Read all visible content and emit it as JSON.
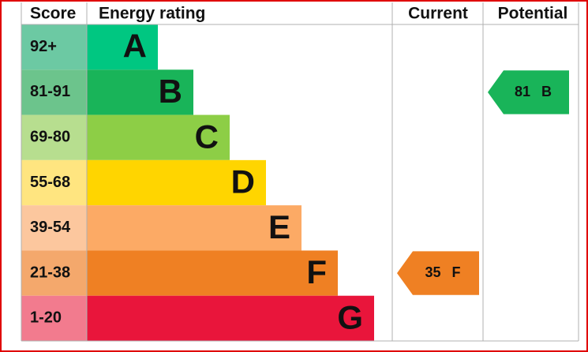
{
  "header": {
    "score": "Score",
    "rating": "Energy rating",
    "current": "Current",
    "potential": "Potential"
  },
  "bands": [
    {
      "score": "92+",
      "letter": "A"
    },
    {
      "score": "81-91",
      "letter": "B"
    },
    {
      "score": "69-80",
      "letter": "C"
    },
    {
      "score": "55-68",
      "letter": "D"
    },
    {
      "score": "39-54",
      "letter": "E"
    },
    {
      "score": "21-38",
      "letter": "F"
    },
    {
      "score": "1-20",
      "letter": "G"
    }
  ],
  "current": {
    "value": 35,
    "band": "F"
  },
  "potential": {
    "value": 81,
    "band": "B"
  }
}
